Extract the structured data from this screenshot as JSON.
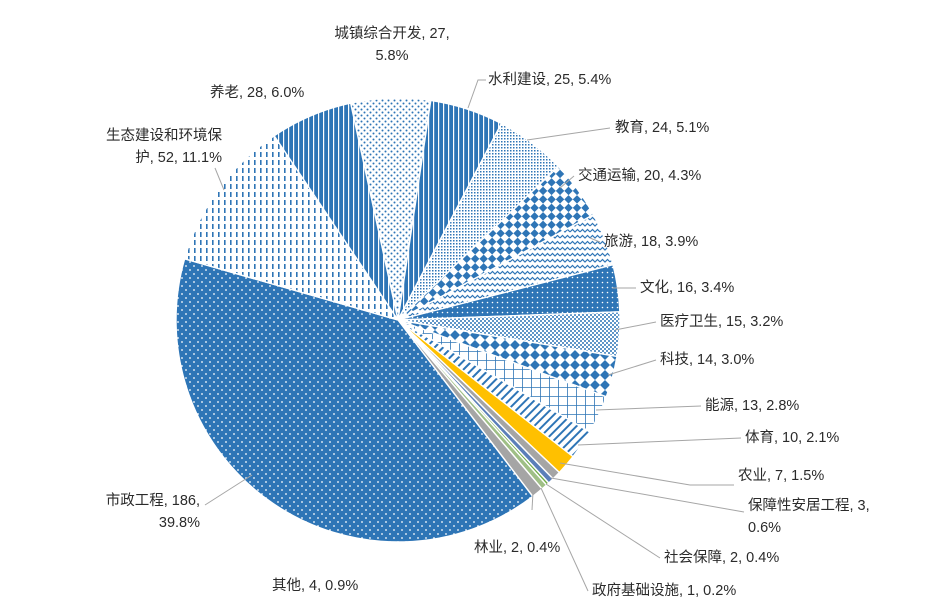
{
  "chart_data": {
    "type": "pie",
    "title": "",
    "colors": {
      "primary": "#2e75b6",
      "gray": "#a5a5a5",
      "gold": "#ffc000",
      "slate": "#5b7fb9",
      "green": "#70ad47"
    },
    "slices": [
      {
        "name": "城镇综合开发",
        "value": 27,
        "percent": "5.8%",
        "label": "城镇综合开发, 27,",
        "label2": "5.8%"
      },
      {
        "name": "水利建设",
        "value": 25,
        "percent": "5.4%",
        "label": "水利建设, 25, 5.4%"
      },
      {
        "name": "教育",
        "value": 24,
        "percent": "5.1%",
        "label": "教育, 24, 5.1%"
      },
      {
        "name": "交通运输",
        "value": 20,
        "percent": "4.3%",
        "label": "交通运输, 20, 4.3%"
      },
      {
        "name": "旅游",
        "value": 18,
        "percent": "3.9%",
        "label": "旅游, 18, 3.9%"
      },
      {
        "name": "文化",
        "value": 16,
        "percent": "3.4%",
        "label": "文化, 16, 3.4%"
      },
      {
        "name": "医疗卫生",
        "value": 15,
        "percent": "3.2%",
        "label": "医疗卫生, 15, 3.2%"
      },
      {
        "name": "科技",
        "value": 14,
        "percent": "3.0%",
        "label": "科技, 14, 3.0%"
      },
      {
        "name": "能源",
        "value": 13,
        "percent": "2.8%",
        "label": "能源, 13, 2.8%"
      },
      {
        "name": "体育",
        "value": 10,
        "percent": "2.1%",
        "label": "体育, 10, 2.1%"
      },
      {
        "name": "农业",
        "value": 7,
        "percent": "1.5%",
        "label": "农业, 7, 1.5%"
      },
      {
        "name": "保障性安居工程",
        "value": 3,
        "percent": "0.6%",
        "label": "保障性安居工程, 3,",
        "label2": "0.6%"
      },
      {
        "name": "社会保障",
        "value": 2,
        "percent": "0.4%",
        "label": "社会保障, 2, 0.4%"
      },
      {
        "name": "政府基础设施",
        "value": 1,
        "percent": "0.2%",
        "label": "政府基础设施, 1, 0.2%"
      },
      {
        "name": "林业",
        "value": 2,
        "percent": "0.4%",
        "label": "林业, 2, 0.4%"
      },
      {
        "name": "其他",
        "value": 4,
        "percent": "0.9%",
        "label": "其他, 4, 0.9%"
      },
      {
        "name": "市政工程",
        "value": 186,
        "percent": "39.8%",
        "label": "市政工程, 186,",
        "label2": "39.8%"
      },
      {
        "name": "生态建设和环境保护",
        "value": 52,
        "percent": "11.1%",
        "label": "生态建设和环境保",
        "label2": "护, 52, 11.1%"
      },
      {
        "name": "养老",
        "value": 28,
        "percent": "6.0%",
        "label": "养老, 28, 6.0%"
      }
    ]
  }
}
